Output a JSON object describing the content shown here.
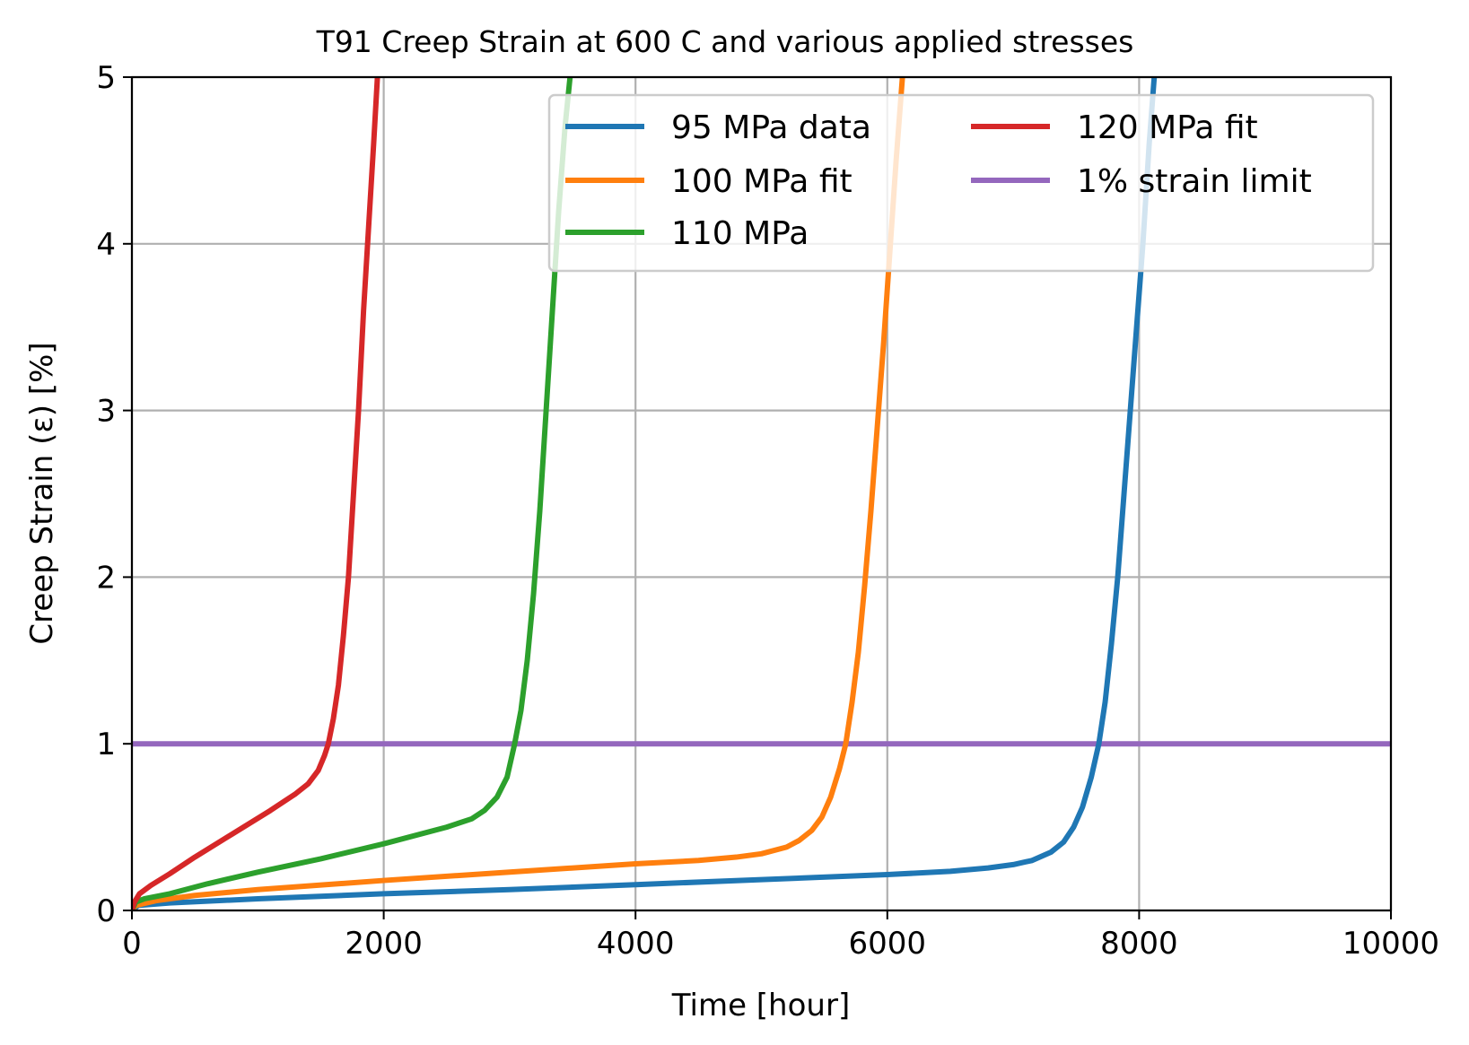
{
  "chart_data": {
    "type": "line",
    "title": "T91 Creep Strain at 600 C and various applied stresses",
    "xlabel": "Time [hour]",
    "ylabel": "Creep Strain (ε) [%]",
    "xlim": [
      0,
      10000
    ],
    "ylim": [
      0,
      5
    ],
    "xticks": [
      0,
      2000,
      4000,
      6000,
      8000,
      10000
    ],
    "yticks": [
      0,
      1,
      2,
      3,
      4,
      5
    ],
    "xtick_labels": [
      "0",
      "2000",
      "4000",
      "6000",
      "8000",
      "10000"
    ],
    "ytick_labels": [
      "0",
      "1",
      "2",
      "3",
      "4",
      "5"
    ],
    "grid": true,
    "legend": {
      "placement": "top-right",
      "columns": 2
    },
    "series": [
      {
        "name": "95 MPa data",
        "color": "#1f77b4",
        "points": [
          [
            0,
            0
          ],
          [
            50,
            0.03
          ],
          [
            300,
            0.045
          ],
          [
            1000,
            0.07
          ],
          [
            2000,
            0.1
          ],
          [
            3000,
            0.125
          ],
          [
            4000,
            0.155
          ],
          [
            5000,
            0.185
          ],
          [
            6000,
            0.215
          ],
          [
            6500,
            0.235
          ],
          [
            6800,
            0.255
          ],
          [
            7000,
            0.275
          ],
          [
            7150,
            0.3
          ],
          [
            7300,
            0.35
          ],
          [
            7400,
            0.41
          ],
          [
            7480,
            0.5
          ],
          [
            7550,
            0.62
          ],
          [
            7620,
            0.8
          ],
          [
            7680,
            1.0
          ],
          [
            7730,
            1.25
          ],
          [
            7780,
            1.6
          ],
          [
            7830,
            2.0
          ],
          [
            7880,
            2.5
          ],
          [
            7930,
            3.0
          ],
          [
            7980,
            3.5
          ],
          [
            8030,
            4.0
          ],
          [
            8080,
            4.6
          ],
          [
            8120,
            5.0
          ]
        ]
      },
      {
        "name": "100 MPa fit",
        "color": "#ff7f0e",
        "points": [
          [
            0,
            0
          ],
          [
            30,
            0.03
          ],
          [
            200,
            0.06
          ],
          [
            500,
            0.09
          ],
          [
            1000,
            0.125
          ],
          [
            2000,
            0.18
          ],
          [
            3000,
            0.23
          ],
          [
            4000,
            0.28
          ],
          [
            4500,
            0.3
          ],
          [
            4800,
            0.32
          ],
          [
            5000,
            0.34
          ],
          [
            5200,
            0.38
          ],
          [
            5300,
            0.42
          ],
          [
            5400,
            0.48
          ],
          [
            5480,
            0.56
          ],
          [
            5550,
            0.68
          ],
          [
            5620,
            0.85
          ],
          [
            5670,
            1.0
          ],
          [
            5720,
            1.25
          ],
          [
            5770,
            1.55
          ],
          [
            5820,
            1.95
          ],
          [
            5870,
            2.4
          ],
          [
            5920,
            2.9
          ],
          [
            5970,
            3.4
          ],
          [
            6020,
            3.95
          ],
          [
            6070,
            4.5
          ],
          [
            6120,
            5.0
          ]
        ]
      },
      {
        "name": "110 MPa",
        "color": "#2ca02c",
        "points": [
          [
            0,
            0
          ],
          [
            30,
            0.05
          ],
          [
            100,
            0.07
          ],
          [
            300,
            0.1
          ],
          [
            600,
            0.16
          ],
          [
            1000,
            0.23
          ],
          [
            1500,
            0.31
          ],
          [
            2000,
            0.4
          ],
          [
            2500,
            0.5
          ],
          [
            2700,
            0.55
          ],
          [
            2800,
            0.6
          ],
          [
            2900,
            0.68
          ],
          [
            2980,
            0.8
          ],
          [
            3040,
            1.0
          ],
          [
            3090,
            1.2
          ],
          [
            3140,
            1.5
          ],
          [
            3190,
            1.9
          ],
          [
            3240,
            2.4
          ],
          [
            3290,
            3.0
          ],
          [
            3340,
            3.6
          ],
          [
            3390,
            4.2
          ],
          [
            3440,
            4.7
          ],
          [
            3480,
            5.0
          ]
        ]
      },
      {
        "name": "120 MPa fit",
        "color": "#d62728",
        "points": [
          [
            0,
            0
          ],
          [
            20,
            0.05
          ],
          [
            60,
            0.1
          ],
          [
            150,
            0.15
          ],
          [
            300,
            0.22
          ],
          [
            500,
            0.32
          ],
          [
            800,
            0.46
          ],
          [
            1100,
            0.6
          ],
          [
            1300,
            0.7
          ],
          [
            1400,
            0.76
          ],
          [
            1480,
            0.84
          ],
          [
            1530,
            0.93
          ],
          [
            1560,
            1.0
          ],
          [
            1600,
            1.15
          ],
          [
            1640,
            1.35
          ],
          [
            1680,
            1.65
          ],
          [
            1720,
            2.0
          ],
          [
            1760,
            2.5
          ],
          [
            1800,
            3.0
          ],
          [
            1840,
            3.6
          ],
          [
            1880,
            4.1
          ],
          [
            1920,
            4.6
          ],
          [
            1950,
            5.0
          ]
        ]
      },
      {
        "name": "1% strain limit",
        "color": "#9467bd",
        "points": [
          [
            0,
            1.0
          ],
          [
            10000,
            1.0
          ]
        ]
      }
    ]
  }
}
